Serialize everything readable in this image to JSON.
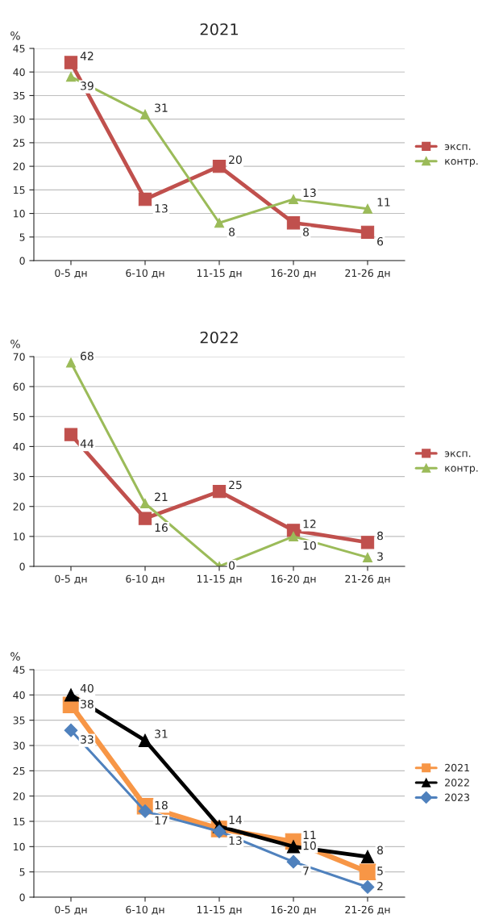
{
  "chart_data": [
    {
      "type": "line",
      "title": "2021",
      "ylabel": "%",
      "categories": [
        "0-5 дн",
        "6-10 дн",
        "11-15 дн",
        "16-20 дн",
        "21-26 дн"
      ],
      "ylim": [
        0,
        45
      ],
      "yticks": [
        0,
        5,
        10,
        15,
        20,
        25,
        30,
        35,
        40,
        45
      ],
      "grid": "y",
      "legend": "right",
      "data_labels": true,
      "series": [
        {
          "name": "эксп.",
          "color": "#c0504d",
          "marker": "square",
          "values": [
            42,
            13,
            20,
            8,
            6
          ]
        },
        {
          "name": "контр.",
          "color": "#9bbb59",
          "marker": "triangle",
          "values": [
            39,
            31,
            8,
            13,
            11
          ]
        }
      ]
    },
    {
      "type": "line",
      "title": "2022",
      "ylabel": "%",
      "categories": [
        "0-5 дн",
        "6-10 дн",
        "11-15 дн",
        "16-20 дн",
        "21-26 дн"
      ],
      "ylim": [
        0,
        70
      ],
      "yticks": [
        0,
        10,
        20,
        30,
        40,
        50,
        60,
        70
      ],
      "grid": "y",
      "legend": "right",
      "data_labels": true,
      "series": [
        {
          "name": "эксп.",
          "color": "#c0504d",
          "marker": "square",
          "values": [
            44,
            16,
            25,
            12,
            8
          ]
        },
        {
          "name": "контр.",
          "color": "#9bbb59",
          "marker": "triangle",
          "values": [
            68,
            21,
            0,
            10,
            3
          ]
        }
      ]
    },
    {
      "type": "line",
      "ylabel": "%",
      "categories": [
        "0-5 дн",
        "6-10 дн",
        "11-15 дн",
        "16-20 дн",
        "21-26 дн"
      ],
      "ylim": [
        0,
        45
      ],
      "yticks": [
        0,
        5,
        10,
        15,
        20,
        25,
        30,
        35,
        40,
        45
      ],
      "grid": "y",
      "legend": "right",
      "series": [
        {
          "name": "2021",
          "color": "#f79646",
          "marker": "square",
          "values": [
            38,
            18,
            13.5,
            11,
            5
          ],
          "value_labels": [
            "38",
            "18",
            null,
            "11",
            "5"
          ]
        },
        {
          "name": "2022",
          "color": "#000000",
          "marker": "triangle",
          "values": [
            40,
            31,
            14,
            10,
            8
          ],
          "value_labels": [
            "40",
            "31",
            "14",
            "10",
            "8"
          ]
        },
        {
          "name": "2023",
          "color": "#4f81bd",
          "marker": "diamond",
          "values": [
            33,
            17,
            13,
            7,
            2
          ],
          "value_labels": [
            "33",
            "17",
            "13",
            "7",
            "2"
          ]
        }
      ]
    }
  ]
}
